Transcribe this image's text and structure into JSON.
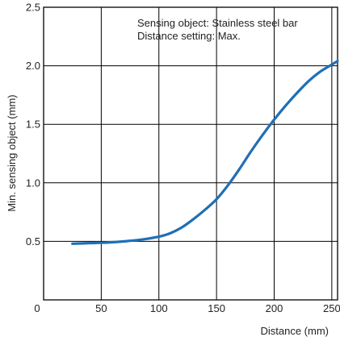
{
  "chart_data": {
    "type": "line",
    "title": "",
    "xlabel": "Distance (mm)",
    "ylabel": "Min. sensing object (mm)",
    "xlim": [
      0,
      255
    ],
    "ylim": [
      0,
      2.5
    ],
    "x_ticks": [
      0,
      50,
      100,
      150,
      200,
      250
    ],
    "y_ticks": [
      0.5,
      1.0,
      1.5,
      2.0,
      2.5
    ],
    "x_tick_labels": [
      "0",
      "50",
      "100",
      "150",
      "200",
      "250"
    ],
    "y_tick_labels": [
      "0.5",
      "1.0",
      "1.5",
      "2.0",
      "2.5"
    ],
    "grid": true,
    "annotations": [
      "Sensing object: Stainless steel bar",
      "Distance setting: Max."
    ],
    "line_color": "#1f6fb5",
    "series": [
      {
        "x": [
          25,
          40,
          55,
          70,
          85,
          100,
          110,
          120,
          130,
          140,
          150,
          160,
          170,
          180,
          190,
          200,
          210,
          220,
          230,
          240,
          250,
          255
        ],
        "y": [
          0.48,
          0.485,
          0.49,
          0.5,
          0.515,
          0.54,
          0.57,
          0.62,
          0.69,
          0.77,
          0.86,
          0.98,
          1.12,
          1.27,
          1.41,
          1.54,
          1.66,
          1.77,
          1.87,
          1.95,
          2.01,
          2.04
        ]
      }
    ]
  }
}
